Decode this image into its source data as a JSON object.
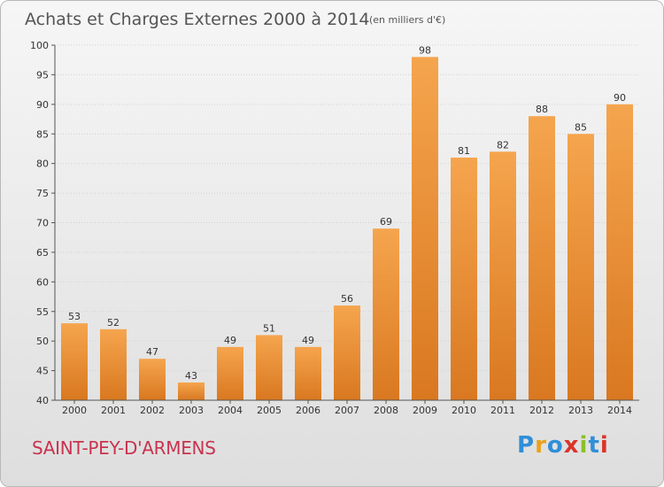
{
  "chart_data": {
    "type": "bar",
    "title": "Achats et Charges Externes 2000 à 2014",
    "subtitle": "(en milliers d'€)",
    "categories": [
      "2000",
      "2001",
      "2002",
      "2003",
      "2004",
      "2005",
      "2006",
      "2007",
      "2008",
      "2009",
      "2010",
      "2011",
      "2012",
      "2013",
      "2014"
    ],
    "values": [
      53,
      52,
      47,
      43,
      49,
      51,
      49,
      56,
      69,
      98,
      81,
      82,
      88,
      85,
      90
    ],
    "ylim": [
      40,
      100
    ],
    "yticks": [
      40,
      45,
      50,
      55,
      60,
      65,
      70,
      75,
      80,
      85,
      90,
      95,
      100
    ],
    "grid": true,
    "bar_color_top": "#f5a54e",
    "bar_color_bottom": "#d97820"
  },
  "place_name": "SAINT-PEY-D'ARMENS",
  "logo": {
    "letters": [
      "P",
      "r",
      "o",
      "x",
      "i",
      "t",
      "i"
    ],
    "colors": [
      "#2f8fd8",
      "#e8a21b",
      "#2f8fd8",
      "#d8352a",
      "#8cbf2a",
      "#2f8fd8",
      "#d8352a"
    ]
  }
}
